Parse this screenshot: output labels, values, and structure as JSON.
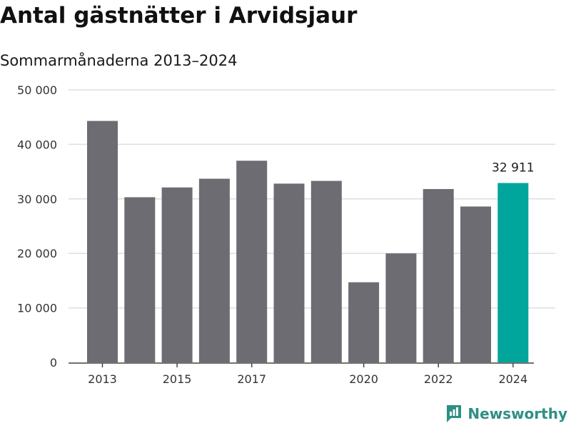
{
  "chart_data": {
    "type": "bar",
    "title": "Antal gästnätter i Arvidsjaur",
    "subtitle": "Sommarmånaderna 2013–2024",
    "categories": [
      "2013",
      "2014",
      "2015",
      "2016",
      "2017",
      "2018",
      "2019",
      "2020",
      "2021",
      "2022",
      "2023",
      "2024"
    ],
    "values": [
      44300,
      30300,
      32100,
      33700,
      37000,
      32800,
      33300,
      14700,
      20000,
      31800,
      28600,
      32911
    ],
    "x_tick_labels": [
      "2013",
      "2015",
      "2017",
      "2020",
      "2022",
      "2024"
    ],
    "y_ticks": [
      0,
      10000,
      20000,
      30000,
      40000,
      50000
    ],
    "y_tick_labels": [
      "0",
      "10 000",
      "20 000",
      "30 000",
      "40 000",
      "50 000"
    ],
    "ylim": [
      0,
      50000
    ],
    "grid": true,
    "highlight_index": 11,
    "highlight_label": "32 911",
    "colors": {
      "bar": "#6d6c72",
      "highlight": "#00a59b",
      "grid": "#dedede",
      "axis": "#444444"
    }
  },
  "brand": {
    "name": "Newsworthy",
    "icon": "newsworthy-logo-icon",
    "color": "#2e8f85"
  }
}
